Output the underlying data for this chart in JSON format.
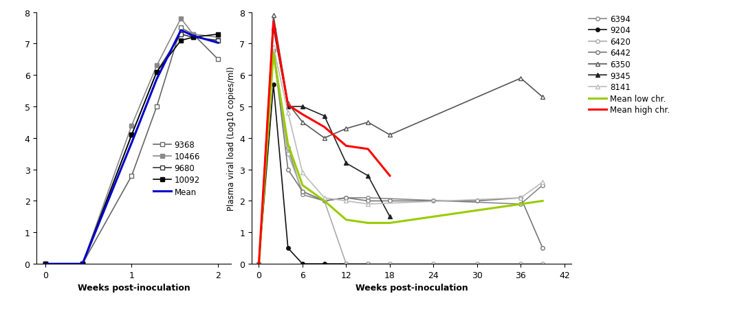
{
  "panel_A": {
    "xlabel": "Weeks post-inoculation",
    "xlim": [
      -0.1,
      2.15
    ],
    "ylim": [
      0,
      8
    ],
    "yticks": [
      0,
      1,
      2,
      3,
      4,
      5,
      6,
      7,
      8
    ],
    "xticks": [
      0,
      1,
      2
    ],
    "series": {
      "9368": {
        "x": [
          0,
          0.43,
          1.0,
          1.29,
          1.57,
          1.71,
          2.0
        ],
        "y": [
          0,
          0,
          2.8,
          5.0,
          7.5,
          7.3,
          6.5
        ],
        "color": "#666666",
        "marker": "s",
        "fillstyle": "none",
        "markersize": 5
      },
      "10466": {
        "x": [
          0,
          0.43,
          1.0,
          1.29,
          1.57,
          1.71,
          2.0
        ],
        "y": [
          0,
          0,
          4.4,
          6.3,
          7.8,
          7.3,
          7.2
        ],
        "color": "#999999",
        "marker": "s",
        "fillstyle": "full",
        "markersize": 5
      },
      "9680": {
        "x": [
          0,
          0.43,
          1.0,
          1.29,
          1.57,
          1.71,
          2.0
        ],
        "y": [
          0,
          0,
          4.1,
          6.1,
          7.3,
          7.2,
          7.1
        ],
        "color": "#333333",
        "marker": "s",
        "fillstyle": "none",
        "markersize": 5
      },
      "10092": {
        "x": [
          0,
          0.43,
          1.0,
          1.29,
          1.57,
          1.71,
          2.0
        ],
        "y": [
          0,
          0,
          4.1,
          6.1,
          7.1,
          7.2,
          7.3
        ],
        "color": "#000000",
        "marker": "s",
        "fillstyle": "full",
        "markersize": 5
      },
      "Mean": {
        "x": [
          0,
          0.43,
          1.0,
          1.29,
          1.57,
          1.71,
          2.0
        ],
        "y": [
          0,
          0,
          3.85,
          5.875,
          7.425,
          7.25,
          7.025
        ],
        "color": "#0000CC",
        "linewidth": 2.2
      }
    },
    "legend_order": [
      "9368",
      "10466",
      "9680",
      "10092",
      "Mean"
    ],
    "legend_labels": [
      "9368",
      "10466",
      "9680",
      "10092",
      "Mean"
    ]
  },
  "panel_B": {
    "xlabel": "Weeks post-inoculation",
    "ylabel": "Plasma viral load (Log10 copies/ml)",
    "xlim": [
      -1,
      43
    ],
    "ylim": [
      0,
      8
    ],
    "yticks": [
      0,
      1,
      2,
      3,
      4,
      5,
      6,
      7,
      8
    ],
    "xticks": [
      0,
      6,
      12,
      18,
      24,
      30,
      36,
      42
    ],
    "series": {
      "6394": {
        "x": [
          0,
          2,
          4,
          6,
          9,
          12,
          15,
          36,
          39
        ],
        "y": [
          0,
          6.8,
          3.7,
          2.2,
          2.0,
          2.1,
          2.1,
          1.9,
          2.5
        ],
        "color": "#888888",
        "marker": "o",
        "fillstyle": "none",
        "markersize": 4,
        "linewidth": 1.2
      },
      "9204": {
        "x": [
          0,
          2,
          4,
          6,
          9,
          12,
          15
        ],
        "y": [
          0,
          5.7,
          0.5,
          0,
          0,
          0,
          0
        ],
        "color": "#111111",
        "marker": "o",
        "fillstyle": "full",
        "markersize": 4,
        "linewidth": 1.2
      },
      "6420": {
        "x": [
          0,
          2,
          4,
          6,
          9,
          12,
          15,
          18,
          24,
          30,
          36,
          39
        ],
        "y": [
          0,
          6.6,
          3.5,
          2.3,
          2.0,
          0,
          0,
          0,
          0,
          0,
          0,
          0
        ],
        "color": "#aaaaaa",
        "marker": "o",
        "fillstyle": "none",
        "markersize": 4,
        "linewidth": 1.2
      },
      "6442": {
        "x": [
          0,
          2,
          4,
          6,
          9,
          12,
          15,
          18,
          24,
          30,
          36,
          39
        ],
        "y": [
          0,
          6.8,
          3.0,
          2.3,
          2.0,
          2.1,
          2.0,
          2.0,
          2.0,
          2.0,
          2.1,
          0.5
        ],
        "color": "#777777",
        "marker": "o",
        "fillstyle": "none",
        "markersize": 4,
        "linewidth": 1.2
      },
      "6350": {
        "x": [
          0,
          2,
          4,
          6,
          9,
          12,
          15,
          18,
          36,
          39
        ],
        "y": [
          0,
          7.9,
          5.1,
          4.5,
          4.0,
          4.3,
          4.5,
          4.1,
          5.9,
          5.3
        ],
        "color": "#555555",
        "marker": "^",
        "fillstyle": "none",
        "markersize": 5,
        "linewidth": 1.2
      },
      "9345": {
        "x": [
          0,
          2,
          4,
          6,
          9,
          12,
          15,
          18
        ],
        "y": [
          0,
          7.5,
          5.0,
          5.0,
          4.7,
          3.2,
          2.8,
          1.5
        ],
        "color": "#222222",
        "marker": "^",
        "fillstyle": "full",
        "markersize": 5,
        "linewidth": 1.2
      },
      "8141": {
        "x": [
          0,
          2,
          4,
          6,
          9,
          12,
          15,
          36,
          39
        ],
        "y": [
          0,
          6.9,
          4.8,
          2.9,
          2.1,
          2.0,
          1.9,
          2.1,
          2.6
        ],
        "color": "#bbbbbb",
        "marker": "^",
        "fillstyle": "none",
        "markersize": 5,
        "linewidth": 1.2
      },
      "Mean low chr.": {
        "x": [
          0,
          2,
          4,
          6,
          9,
          12,
          15,
          18,
          24,
          30,
          36,
          39
        ],
        "y": [
          0,
          6.7,
          3.8,
          2.5,
          2.0,
          1.4,
          1.3,
          1.3,
          1.5,
          1.7,
          1.9,
          2.0
        ],
        "color": "#99cc00",
        "linewidth": 2.2
      },
      "Mean high chr.": {
        "x": [
          0,
          2,
          4,
          6,
          9,
          12,
          15,
          18
        ],
        "y": [
          0,
          7.7,
          5.05,
          4.75,
          4.35,
          3.75,
          3.65,
          2.8
        ],
        "color": "#ff0000",
        "linewidth": 2.2
      }
    },
    "legend_order": [
      "6394",
      "9204",
      "6420",
      "6442",
      "6350",
      "9345",
      "8141",
      "Mean low chr.",
      "Mean high chr."
    ]
  }
}
